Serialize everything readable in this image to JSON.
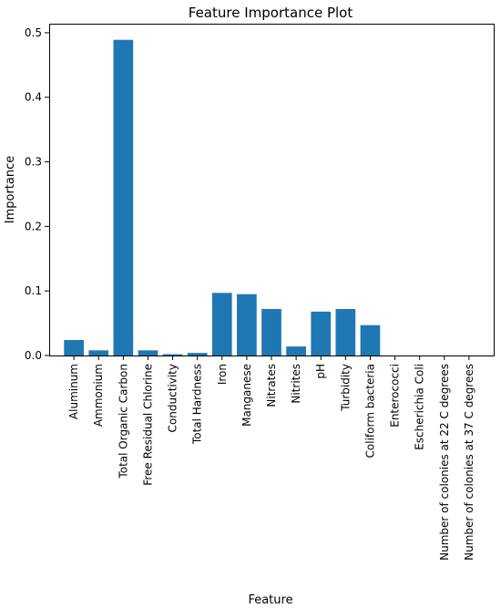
{
  "chart_data": {
    "type": "bar",
    "title": "Feature Importance Plot",
    "xlabel": "Feature",
    "ylabel": "Importance",
    "categories": [
      "Aluminum",
      "Ammonium",
      "Total Organic Carbon",
      "Free Residual Chlorine",
      "Conductivity",
      "Total Hardness",
      "Iron",
      "Manganese",
      "Nitrates",
      "Nitrites",
      "pH",
      "Turbidity",
      "Coliform bacteria",
      "Enterococci",
      "Escherichia Coli",
      "Number of colonies at 22 C degrees",
      "Number of colonies at 37 C degrees"
    ],
    "values": [
      0.024,
      0.008,
      0.489,
      0.008,
      0.002,
      0.004,
      0.097,
      0.095,
      0.072,
      0.014,
      0.068,
      0.072,
      0.047,
      0.0,
      0.0,
      0.0,
      0.0
    ],
    "ylim": [
      0,
      0.514
    ],
    "yticks": [
      0.0,
      0.1,
      0.2,
      0.3,
      0.4,
      0.5
    ],
    "ytick_labels": [
      "0.0",
      "0.1",
      "0.2",
      "0.3",
      "0.4",
      "0.5"
    ],
    "bar_color": "#1f77b4",
    "grid": false,
    "legend": "none"
  }
}
